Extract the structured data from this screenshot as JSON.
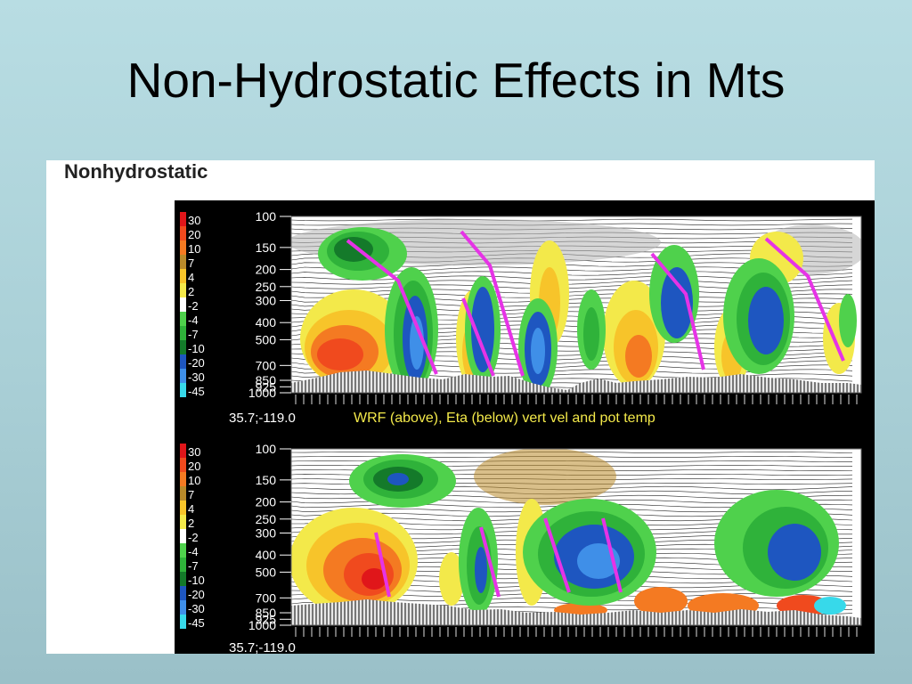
{
  "slide": {
    "title": "Non-Hydrostatic Effects in Mts"
  },
  "figure": {
    "heading": "Nonhydrostatic",
    "caption": "WRF (above), Eta (below) vert vel and pot temp",
    "location_label": "35.7;-119.0",
    "pressure_levels": [
      "100",
      "150",
      "200",
      "250",
      "300",
      "400",
      "500",
      "700",
      "850",
      "925",
      "1000"
    ],
    "color_scale": {
      "labels": [
        "30",
        "20",
        "10",
        "7",
        "4",
        "2",
        "-2",
        "-4",
        "-7",
        "-10",
        "-20",
        "-30",
        "-45"
      ],
      "colors": [
        "#e0161a",
        "#f04a1e",
        "#f47a22",
        "#b98a2a",
        "#f7c42a",
        "#f3e94a",
        "#ffffff",
        "#4fd14c",
        "#2fb23a",
        "#147a2a",
        "#1e56c0",
        "#3f8fe8",
        "#37d9ea"
      ]
    },
    "overlay_color": "#e633e6"
  }
}
